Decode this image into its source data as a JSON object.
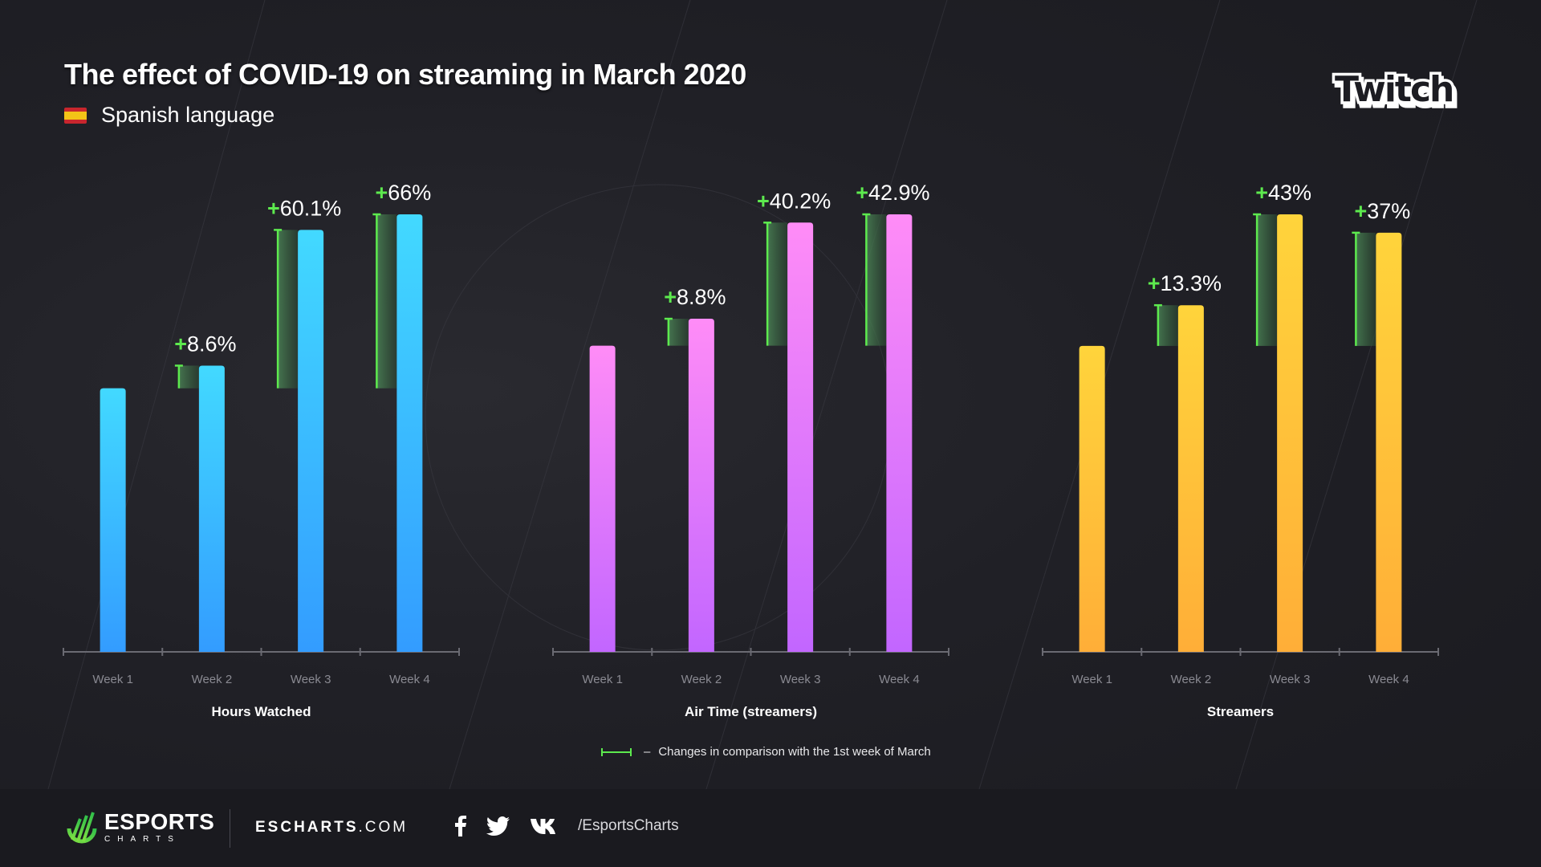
{
  "header": {
    "title": "The effect of COVID-19 on streaming in March 2020",
    "subtitle": "Spanish language",
    "flag_icon": "spain-flag-icon",
    "brand_logo": "Twitch"
  },
  "colors": {
    "background": "#202026",
    "footer": "#1a1a1f",
    "change_marker": "#5dea4e",
    "hours_watched_top": "#42d9ff",
    "hours_watched_bottom": "#339cff",
    "air_time_top": "#ff8cf7",
    "air_time_bottom": "#c266ff",
    "streamers_top": "#ffd43b",
    "streamers_bottom": "#ffae38"
  },
  "chart_data": [
    {
      "type": "bar",
      "title": "Hours Watched",
      "categories": [
        "Week 1",
        "Week 2",
        "Week 3",
        "Week 4"
      ],
      "values": [
        100,
        108.6,
        160.1,
        166
      ],
      "value_unit": "index (Week 1 = 100)",
      "change_labels": [
        "",
        "+8.6%",
        "+60.1%",
        "+66%"
      ],
      "changes_pct": [
        0,
        8.6,
        60.1,
        66
      ],
      "ylim": [
        0,
        167
      ],
      "grid": false,
      "color_key": "hours_watched"
    },
    {
      "type": "bar",
      "title": "Air Time (streamers)",
      "categories": [
        "Week 1",
        "Week 2",
        "Week 3",
        "Week 4"
      ],
      "values": [
        100,
        108.8,
        140.2,
        142.9
      ],
      "value_unit": "index (Week 1 = 100)",
      "change_labels": [
        "",
        "+8.8%",
        "+40.2%",
        "+42.9%"
      ],
      "changes_pct": [
        0,
        8.8,
        40.2,
        42.9
      ],
      "ylim": [
        0,
        143.5
      ],
      "grid": false,
      "color_key": "air_time"
    },
    {
      "type": "bar",
      "title": "Streamers",
      "categories": [
        "Week 1",
        "Week 2",
        "Week 3",
        "Week 4"
      ],
      "values": [
        100,
        113.3,
        143,
        137
      ],
      "value_unit": "index (Week 1 = 100)",
      "change_labels": [
        "",
        "+13.3%",
        "+43%",
        "+37%"
      ],
      "changes_pct": [
        0,
        13.3,
        43,
        37
      ],
      "ylim": [
        0,
        143.5
      ],
      "grid": false,
      "color_key": "streamers"
    }
  ],
  "legend": {
    "separator": "–",
    "text": "Changes in comparison with the 1st week of March",
    "position": "bottom-center"
  },
  "footer": {
    "logo_main": "ESPORTS",
    "logo_sub": "CHARTS",
    "site_bold": "ESCHARTS",
    "site_rest": ".COM",
    "social_icons": [
      "facebook-icon",
      "twitter-icon",
      "vk-icon"
    ],
    "handle": "/EsportsCharts"
  }
}
